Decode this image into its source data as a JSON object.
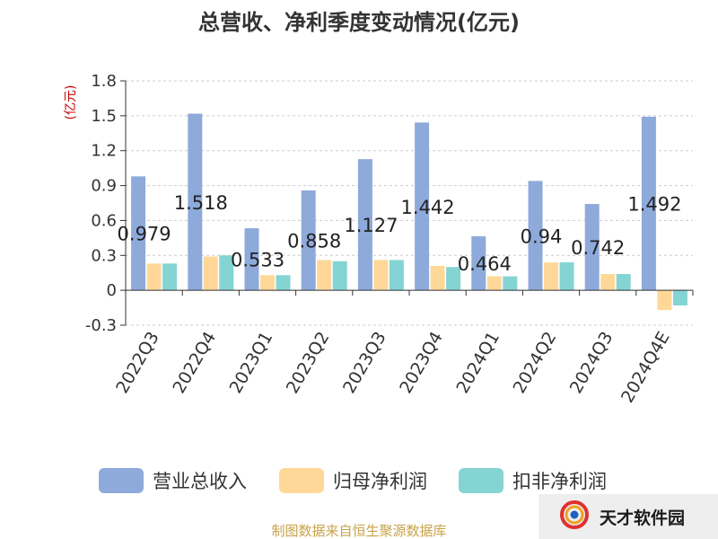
{
  "chart_data": {
    "type": "bar",
    "title": "总营收、净利季度变动情况(亿元)",
    "ylabel": "(亿元)",
    "categories": [
      "2022Q3",
      "2022Q4",
      "2023Q1",
      "2023Q2",
      "2023Q3",
      "2023Q4",
      "2024Q1",
      "2024Q2",
      "2024Q3",
      "2024Q4E"
    ],
    "series": [
      {
        "name": "营业总收入",
        "color": "#8eaadb",
        "values": [
          0.979,
          1.518,
          0.533,
          0.858,
          1.127,
          1.442,
          0.464,
          0.94,
          0.742,
          1.492
        ]
      },
      {
        "name": "归母净利润",
        "color": "#ffd899",
        "values": [
          0.23,
          0.29,
          0.13,
          0.26,
          0.26,
          0.21,
          0.12,
          0.24,
          0.14,
          -0.17
        ]
      },
      {
        "name": "扣非净利润",
        "color": "#85d4d4",
        "values": [
          0.23,
          0.3,
          0.13,
          0.25,
          0.26,
          0.2,
          0.12,
          0.24,
          0.14,
          -0.13
        ]
      }
    ],
    "data_labels": [
      "0.979",
      "1.518",
      "0.533",
      "0.858",
      "1.127",
      "1.442",
      "0.464",
      "0.94",
      "0.742",
      "1.492"
    ],
    "yticks": [
      "-0.3",
      "0",
      "0.3",
      "0.6",
      "0.9",
      "1.2",
      "1.5",
      "1.8"
    ],
    "ylim": [
      -0.3,
      1.8
    ],
    "grid": true,
    "legend_position": "bottom"
  },
  "colors": {
    "grid": "#cccccc",
    "axis": "#333333",
    "unit": "#cc0000",
    "source": "#c8a24a"
  },
  "footer": {
    "source": "制图数据来自恒生聚源数据库",
    "brand": "天才软件园"
  }
}
